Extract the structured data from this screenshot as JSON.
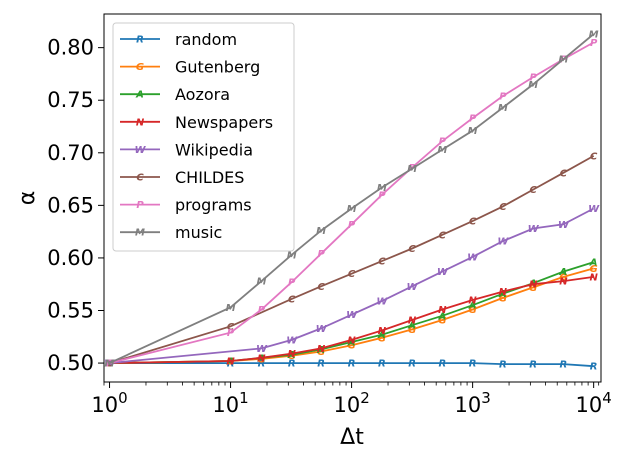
{
  "chart_data": {
    "type": "line",
    "title": "",
    "xlabel": "Δt",
    "ylabel": "α",
    "xscale": "log",
    "xlim": [
      0.9,
      11500
    ],
    "ylim": [
      0.482,
      0.832
    ],
    "x_ticks": [
      {
        "value": 1,
        "label": "10",
        "exp": "0"
      },
      {
        "value": 10,
        "label": "10",
        "exp": "1"
      },
      {
        "value": 100,
        "label": "10",
        "exp": "2"
      },
      {
        "value": 1000,
        "label": "10",
        "exp": "3"
      },
      {
        "value": 10000,
        "label": "10",
        "exp": "4"
      }
    ],
    "y_ticks": [
      0.5,
      0.55,
      0.6,
      0.65,
      0.7,
      0.75,
      0.8
    ],
    "y_tick_labels": [
      "0.50",
      "0.55",
      "0.60",
      "0.65",
      "0.70",
      "0.75",
      "0.80"
    ],
    "legend_position": "top-left",
    "series": [
      {
        "name": "random",
        "marker": "R",
        "color": "#1f77b4",
        "x": [
          1,
          10,
          18,
          32,
          56,
          100,
          178,
          316,
          562,
          1000,
          1778,
          3162,
          5623,
          10000
        ],
        "y": [
          0.5,
          0.5,
          0.5,
          0.5,
          0.5,
          0.5,
          0.5,
          0.5,
          0.5,
          0.5,
          0.499,
          0.499,
          0.499,
          0.497
        ]
      },
      {
        "name": "Gutenberg",
        "marker": "G",
        "color": "#ff7f0e",
        "x": [
          1,
          10,
          18,
          32,
          56,
          100,
          178,
          316,
          562,
          1000,
          1778,
          3162,
          5623,
          10000
        ],
        "y": [
          0.5,
          0.502,
          0.504,
          0.507,
          0.511,
          0.517,
          0.524,
          0.532,
          0.541,
          0.551,
          0.562,
          0.572,
          0.582,
          0.59
        ]
      },
      {
        "name": "Aozora",
        "marker": "A",
        "color": "#2ca02c",
        "x": [
          1,
          10,
          18,
          32,
          56,
          100,
          178,
          316,
          562,
          1000,
          1778,
          3162,
          5623,
          10000
        ],
        "y": [
          0.5,
          0.502,
          0.505,
          0.508,
          0.513,
          0.52,
          0.527,
          0.536,
          0.545,
          0.555,
          0.566,
          0.576,
          0.587,
          0.596
        ]
      },
      {
        "name": "Newspapers",
        "marker": "N",
        "color": "#d62728",
        "x": [
          1,
          10,
          18,
          32,
          56,
          100,
          178,
          316,
          562,
          1000,
          1778,
          3162,
          5623,
          10000
        ],
        "y": [
          0.5,
          0.502,
          0.505,
          0.509,
          0.514,
          0.522,
          0.531,
          0.541,
          0.551,
          0.56,
          0.568,
          0.575,
          0.578,
          0.582
        ]
      },
      {
        "name": "Wikipedia",
        "marker": "W",
        "color": "#9467bd",
        "x": [
          1,
          18,
          32,
          56,
          100,
          178,
          316,
          562,
          1000,
          1778,
          3162,
          5623,
          10000
        ],
        "y": [
          0.5,
          0.514,
          0.522,
          0.533,
          0.546,
          0.559,
          0.573,
          0.587,
          0.601,
          0.616,
          0.628,
          0.632,
          0.647
        ]
      },
      {
        "name": "CHILDES",
        "marker": "C",
        "color": "#8c564b",
        "x": [
          1,
          10,
          32,
          56,
          100,
          178,
          316,
          562,
          1000,
          1778,
          3162,
          5623,
          10000
        ],
        "y": [
          0.5,
          0.535,
          0.561,
          0.573,
          0.585,
          0.597,
          0.609,
          0.622,
          0.635,
          0.649,
          0.665,
          0.681,
          0.697
        ]
      },
      {
        "name": "programs",
        "marker": "P",
        "color": "#e377c2",
        "x": [
          1,
          10,
          18,
          32,
          56,
          100,
          178,
          316,
          562,
          1000,
          1778,
          3162,
          5623,
          10000
        ],
        "y": [
          0.5,
          0.529,
          0.551,
          0.577,
          0.604,
          0.632,
          0.66,
          0.686,
          0.711,
          0.733,
          0.754,
          0.772,
          0.789,
          0.805
        ]
      },
      {
        "name": "music",
        "marker": "M",
        "color": "#7f7f7f",
        "x": [
          1,
          10,
          18,
          32,
          56,
          100,
          178,
          316,
          562,
          1000,
          1778,
          3162,
          5623,
          10000
        ],
        "y": [
          0.5,
          0.553,
          0.578,
          0.603,
          0.626,
          0.647,
          0.667,
          0.685,
          0.703,
          0.721,
          0.743,
          0.765,
          0.789,
          0.813
        ]
      }
    ]
  }
}
